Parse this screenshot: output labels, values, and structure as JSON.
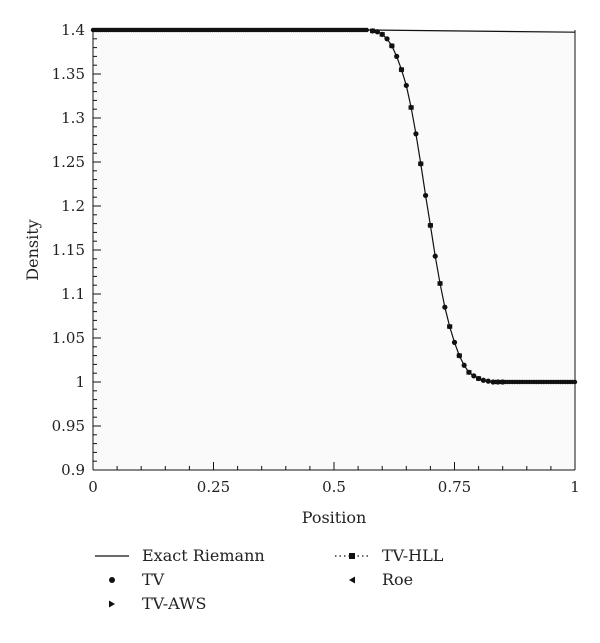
{
  "chart_data": {
    "type": "line",
    "xlabel": "Position",
    "ylabel": "Density",
    "xlim": [
      0,
      1
    ],
    "ylim": [
      0.9,
      1.4
    ],
    "xticks": [
      0,
      0.25,
      0.5,
      0.75,
      1
    ],
    "xtick_labels": [
      "0",
      "0.25",
      "0.5",
      "0.75",
      "1"
    ],
    "yticks": [
      0.9,
      0.95,
      1.0,
      1.05,
      1.1,
      1.15,
      1.2,
      1.25,
      1.3,
      1.35,
      1.4
    ],
    "ytick_labels": [
      "0.9",
      "0.95",
      "1",
      "1.05",
      "1.1",
      "1.15",
      "1.2",
      "1.25",
      "1.3",
      "1.35",
      "1.4"
    ],
    "grid": false,
    "legend_position": "bottom",
    "series": [
      {
        "name": "Exact Riemann",
        "style": "line",
        "x": [
          0,
          0.58,
          1.0
        ],
        "y": [
          1.4,
          1.4,
          1.3975
        ]
      },
      {
        "name": "TV",
        "style": "circle-marker",
        "x": [
          0.58,
          0.59,
          0.6,
          0.61,
          0.62,
          0.63,
          0.64,
          0.65,
          0.66,
          0.67,
          0.68,
          0.69,
          0.7,
          0.71,
          0.72,
          0.73,
          0.74,
          0.75,
          0.76,
          0.77,
          0.78,
          0.79,
          0.8,
          0.81,
          0.82,
          0.83,
          0.84,
          0.85
        ],
        "y": [
          1.399,
          1.398,
          1.395,
          1.39,
          1.382,
          1.37,
          1.355,
          1.337,
          1.312,
          1.282,
          1.248,
          1.212,
          1.178,
          1.143,
          1.112,
          1.085,
          1.063,
          1.045,
          1.03,
          1.019,
          1.011,
          1.007,
          1.004,
          1.002,
          1.001,
          1.0,
          1.0,
          1.0
        ]
      },
      {
        "name": "TV-AWS",
        "style": "right-triangle-marker",
        "x": [
          0.58,
          0.6,
          0.62,
          0.64,
          0.66,
          0.68,
          0.7,
          0.72,
          0.74,
          0.76,
          0.78,
          0.8
        ],
        "y": [
          1.399,
          1.395,
          1.382,
          1.355,
          1.312,
          1.248,
          1.178,
          1.112,
          1.063,
          1.03,
          1.011,
          1.004
        ]
      },
      {
        "name": "TV-HLL",
        "style": "dotted-square",
        "x": [
          0.58,
          0.6,
          0.62,
          0.64,
          0.66,
          0.68,
          0.7,
          0.72,
          0.74,
          0.76,
          0.78,
          0.8
        ],
        "y": [
          1.399,
          1.395,
          1.382,
          1.355,
          1.312,
          1.248,
          1.178,
          1.112,
          1.063,
          1.03,
          1.011,
          1.004
        ]
      },
      {
        "name": "Roe",
        "style": "left-triangle-marker",
        "x": [
          0.58,
          0.6,
          0.62,
          0.64,
          0.66,
          0.68,
          0.7,
          0.72,
          0.74,
          0.76,
          0.78,
          0.8
        ],
        "y": [
          1.399,
          1.395,
          1.382,
          1.355,
          1.312,
          1.248,
          1.178,
          1.112,
          1.063,
          1.03,
          1.011,
          1.004
        ]
      }
    ]
  }
}
